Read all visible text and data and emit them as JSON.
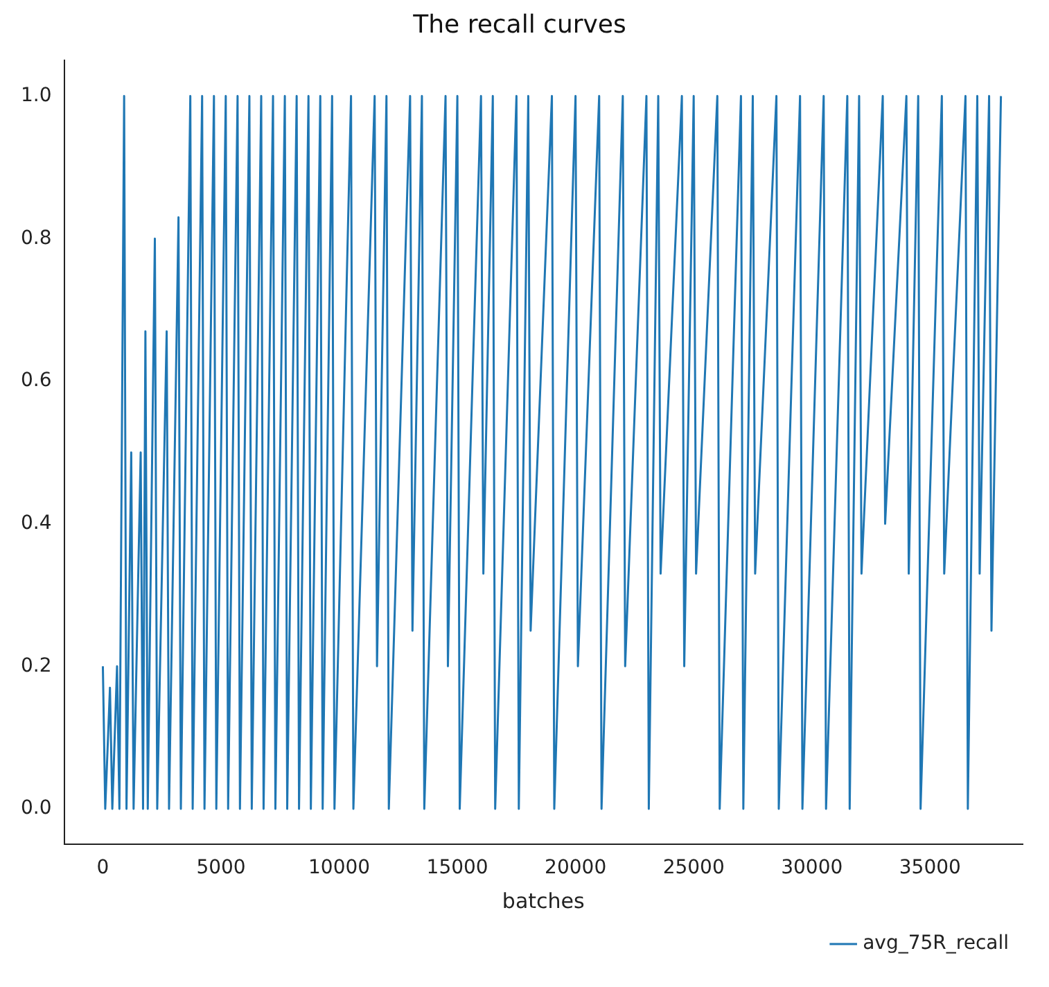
{
  "chart_data": {
    "type": "line",
    "title": "The recall curves",
    "xlabel": "batches",
    "xlim": [
      -1640,
      38920
    ],
    "xticks": [
      0,
      5000,
      10000,
      15000,
      20000,
      25000,
      30000,
      35000
    ],
    "ylim": [
      -0.05,
      1.05
    ],
    "yticks": [
      {
        "value": 0,
        "label": "0.0"
      },
      {
        "value": 0.2,
        "label": "0.2"
      },
      {
        "value": 0.4,
        "label": "0.4"
      },
      {
        "value": 0.6,
        "label": "0.6"
      },
      {
        "value": 0.8,
        "label": "0.8"
      },
      {
        "value": 1,
        "label": "1.0"
      }
    ],
    "grid": false,
    "legend": "bottom right",
    "marker": "none",
    "line_style": "solid",
    "series": [
      {
        "name": "avg_75R_recall",
        "color": "#1f77b4",
        "x": [
          0,
          100,
          300,
          400,
          600,
          700,
          900,
          1000,
          1200,
          1300,
          1600,
          1700,
          1800,
          1900,
          2200,
          2300,
          2700,
          2800,
          3200,
          3300,
          3700,
          3800,
          4200,
          4300,
          4700,
          4800,
          5200,
          5300,
          5700,
          5800,
          6200,
          6300,
          6700,
          6800,
          7200,
          7300,
          7700,
          7800,
          8200,
          8300,
          8700,
          8800,
          9200,
          9300,
          9700,
          9800,
          10500,
          10600,
          11500,
          11600,
          12000,
          12100,
          13000,
          13100,
          13500,
          13600,
          14500,
          14600,
          15000,
          15100,
          16000,
          16100,
          16500,
          16600,
          17500,
          17600,
          18000,
          18100,
          19000,
          19100,
          20000,
          20100,
          21000,
          21100,
          22000,
          22100,
          23000,
          23100,
          23500,
          23600,
          24500,
          24600,
          25000,
          25100,
          26000,
          26100,
          27000,
          27100,
          27500,
          27600,
          28500,
          28600,
          29500,
          29600,
          30500,
          30600,
          31500,
          31600,
          32000,
          32100,
          33000,
          33100,
          34000,
          34100,
          34500,
          34600,
          35500,
          35600,
          36500,
          36600,
          37000,
          37100,
          37500,
          37600,
          38000
        ],
        "values": [
          0.2,
          0,
          0.17,
          0,
          0.2,
          0,
          1,
          0,
          0.5,
          0,
          0.5,
          0,
          0.67,
          0,
          0.8,
          0,
          0.67,
          0,
          0.83,
          0,
          1,
          0,
          1,
          0,
          1,
          0,
          1,
          0,
          1,
          0,
          1,
          0,
          1,
          0,
          1,
          0,
          1,
          0,
          1,
          0,
          1,
          0,
          1,
          0,
          1,
          0,
          1,
          0,
          1,
          0.2,
          1,
          0,
          1,
          0.25,
          1,
          0,
          1,
          0.2,
          1,
          0,
          1,
          0.33,
          1,
          0,
          1,
          0,
          1,
          0.25,
          1,
          0,
          1,
          0.2,
          1,
          0,
          1,
          0.2,
          1,
          0,
          1,
          0.33,
          1,
          0.2,
          1,
          0.33,
          1,
          0,
          1,
          0,
          1,
          0.33,
          1,
          0,
          1,
          0,
          1,
          0,
          1,
          0,
          1,
          0.33,
          1,
          0.4,
          1,
          0.33,
          1,
          0,
          1,
          0.33,
          1,
          0,
          1,
          0.33,
          1,
          0.25,
          1
        ]
      }
    ]
  }
}
